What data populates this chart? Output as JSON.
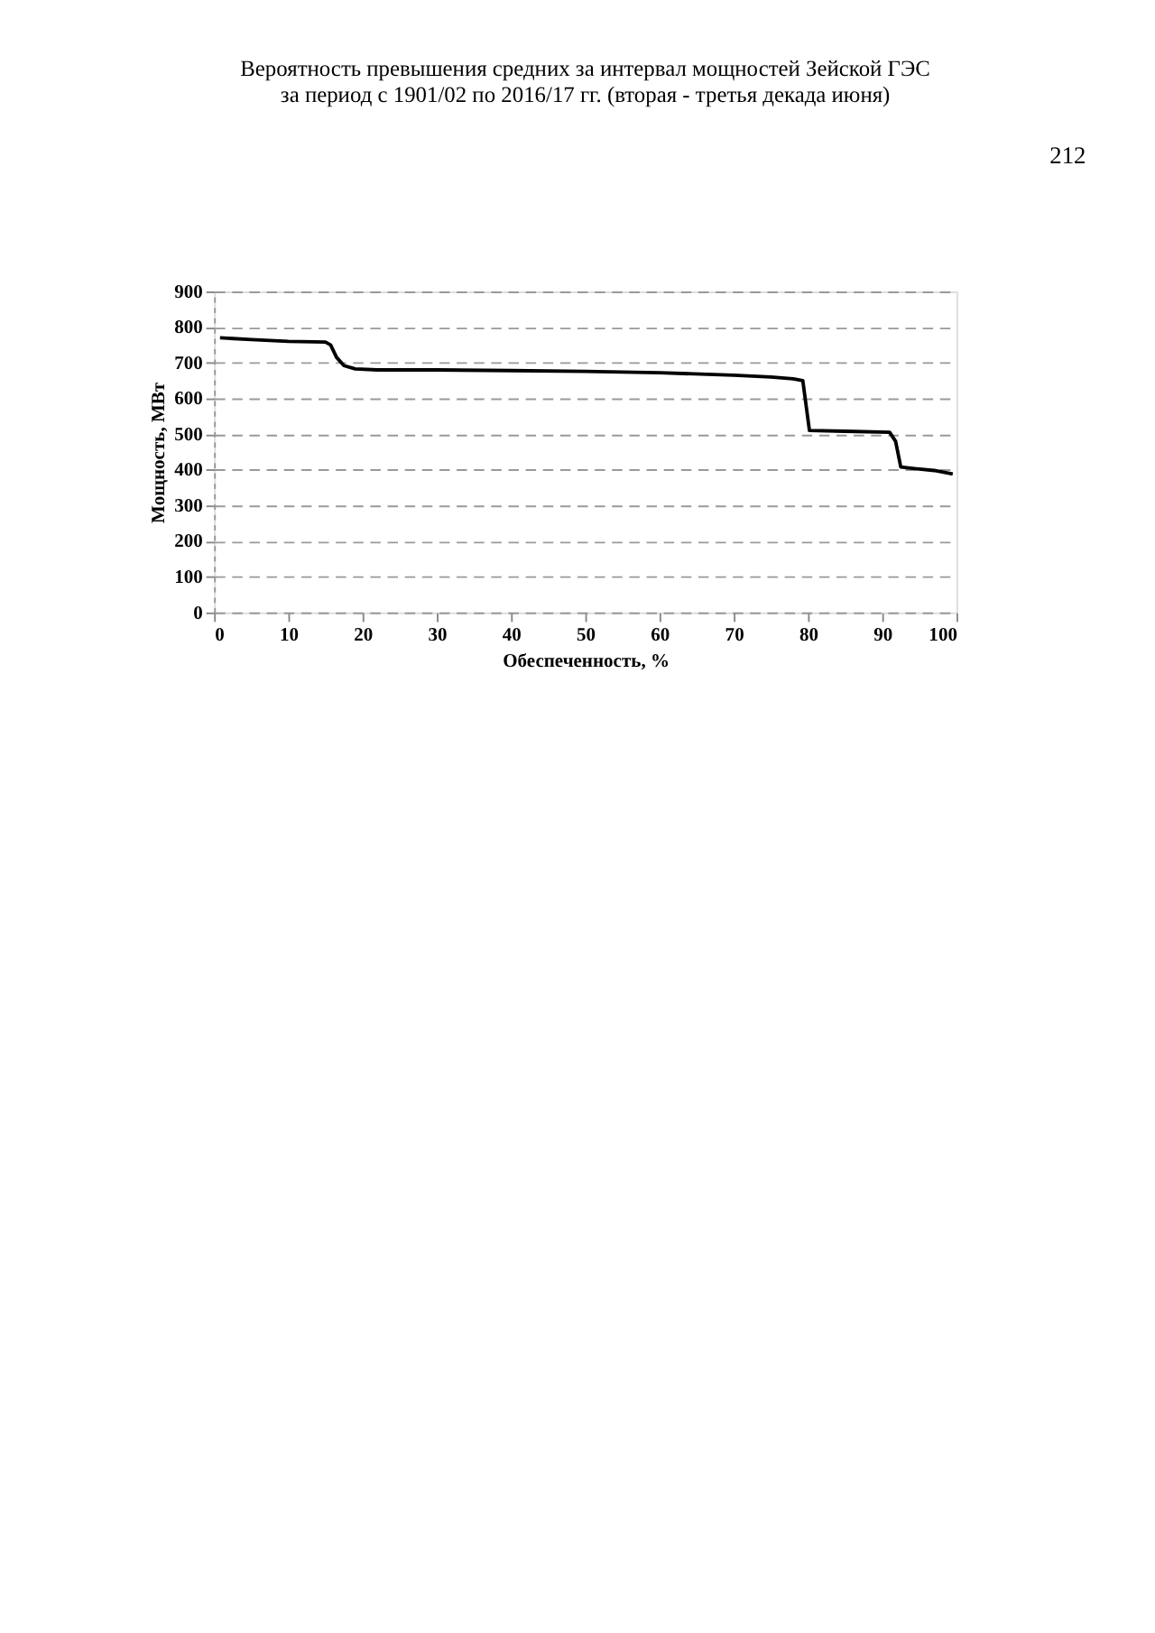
{
  "chart_data": {
    "type": "line",
    "title": [
      "Вероятность превышения средних за интервал мощностей Зейской ГЭС",
      "за период с 1901/02 по 2016/17 гг. (вторая - третья декада июня)"
    ],
    "xlabel": "Обеспеченность, %",
    "ylabel": "Мощность, МВт",
    "x": [
      0.8,
      5,
      10,
      15,
      15.7,
      16.5,
      17.5,
      19,
      22,
      30,
      40,
      50,
      60,
      70,
      75,
      78,
      79.3,
      80.2,
      85,
      91,
      91.8,
      92.5,
      95,
      97,
      99.5
    ],
    "series": [
      {
        "color": "#000000",
        "values": [
          770,
          765,
          760,
          758,
          750,
          715,
          692,
          683,
          680,
          680,
          678,
          676,
          672,
          665,
          660,
          655,
          650,
          510,
          508,
          505,
          480,
          408,
          402,
          398,
          388
        ]
      }
    ],
    "xlim": [
      0,
      100
    ],
    "xticks": [
      0,
      10,
      20,
      30,
      40,
      50,
      60,
      70,
      80,
      90,
      100
    ],
    "ylim": [
      0,
      900
    ],
    "yticks": [
      0,
      100,
      200,
      300,
      400,
      500,
      600,
      700,
      800,
      900
    ],
    "grid": "y",
    "marker": "none",
    "line_style": "solid",
    "legend": false,
    "annotations": [
      "212"
    ]
  }
}
